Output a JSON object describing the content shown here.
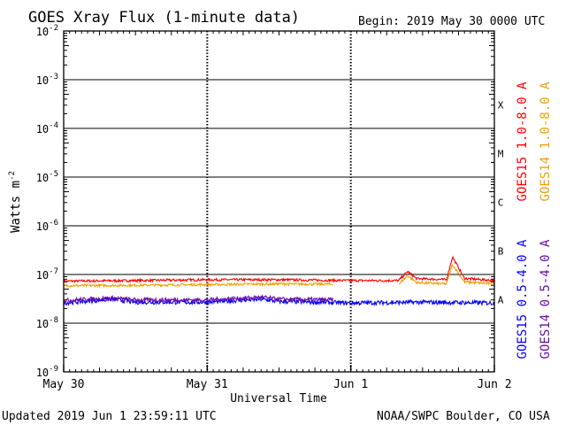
{
  "header": {
    "title": "GOES Xray Flux (1-minute data)",
    "begin": "Begin:  2019 May 30 0000 UTC"
  },
  "footer": {
    "updated": "Updated 2019 Jun  1 23:59:11 UTC",
    "source": "NOAA/SWPC Boulder, CO USA"
  },
  "chart_data": {
    "type": "line",
    "title": "GOES Xray Flux (1-minute data)",
    "xlabel": "Universal Time",
    "ylabel": "Watts m",
    "ylabel_sup": "-2",
    "y_scale": "log",
    "ylim": [
      1e-09,
      0.01
    ],
    "y_ticks": [
      {
        "base": "10",
        "exp": "-2"
      },
      {
        "base": "10",
        "exp": "-3"
      },
      {
        "base": "10",
        "exp": "-4"
      },
      {
        "base": "10",
        "exp": "-5"
      },
      {
        "base": "10",
        "exp": "-6"
      },
      {
        "base": "10",
        "exp": "-7"
      },
      {
        "base": "10",
        "exp": "-8"
      },
      {
        "base": "10",
        "exp": "-9"
      }
    ],
    "xlim": [
      "2019-05-30T00:00",
      "2019-06-02T00:00"
    ],
    "x_ticks": [
      "May 30",
      "May 31",
      "Jun 1",
      "Jun 2"
    ],
    "flare_classes": [
      {
        "label": "X",
        "threshold": 0.0001
      },
      {
        "label": "M",
        "threshold": 1e-05
      },
      {
        "label": "C",
        "threshold": 1e-06
      },
      {
        "label": "B",
        "threshold": 1e-07
      },
      {
        "label": "A",
        "threshold": 1e-08
      }
    ],
    "grid": true,
    "legend_position": "right",
    "series": [
      {
        "name": "GOES15 1.0-8.0 A",
        "color": "#ff0000",
        "x": [
          "2019-05-30T00:00",
          "2019-05-30T12:00",
          "2019-05-31T00:00",
          "2019-05-31T12:00",
          "2019-06-01T00:00",
          "2019-06-01T08:00",
          "2019-06-01T09:30",
          "2019-06-01T11:00",
          "2019-06-01T14:00",
          "2019-06-01T16:00",
          "2019-06-01T17:00",
          "2019-06-01T19:00",
          "2019-06-02T00:00"
        ],
        "values": [
          7.3e-08,
          7.5e-08,
          7.8e-08,
          7.8e-08,
          7.5e-08,
          7.5e-08,
          1.15e-07,
          8.2e-08,
          8e-08,
          7.8e-08,
          2.3e-07,
          8.3e-08,
          7.5e-08
        ]
      },
      {
        "name": "GOES14 1.0-8.0 A",
        "color": "#f0a000",
        "x": [
          "2019-05-30T00:00",
          "2019-05-30T12:00",
          "2019-05-31T00:00",
          "2019-05-31T12:00",
          "2019-05-31T21:00",
          "2019-06-01T00:00",
          "2019-06-01T08:00",
          "2019-06-01T09:30",
          "2019-06-01T11:00",
          "2019-06-01T16:00",
          "2019-06-01T17:00",
          "2019-06-01T19:00",
          "2019-06-02T00:00"
        ],
        "values": [
          5.9e-08,
          6e-08,
          6.2e-08,
          6.4e-08,
          6.3e-08,
          null,
          6.2e-08,
          9.5e-08,
          6.8e-08,
          6.4e-08,
          1.6e-07,
          7e-08,
          6.4e-08
        ]
      },
      {
        "name": "GOES15 0.5-4.0 A",
        "color": "#0000ff",
        "x": [
          "2019-05-30T00:00",
          "2019-05-30T08:00",
          "2019-05-30T12:00",
          "2019-05-31T00:00",
          "2019-05-31T09:00",
          "2019-05-31T12:00",
          "2019-06-01T00:00",
          "2019-06-01T12:00",
          "2019-06-02T00:00"
        ],
        "values": [
          2.6e-08,
          3.1e-08,
          2.7e-08,
          2.7e-08,
          3.1e-08,
          2.8e-08,
          2.6e-08,
          2.7e-08,
          2.6e-08
        ]
      },
      {
        "name": "GOES14 0.5-4.0 A",
        "color": "#6a0dad",
        "x": [
          "2019-05-30T00:00",
          "2019-05-30T08:00",
          "2019-05-30T12:00",
          "2019-05-31T00:00",
          "2019-05-31T09:00",
          "2019-05-31T12:00",
          "2019-05-31T21:00"
        ],
        "values": [
          2.9e-08,
          3.3e-08,
          3e-08,
          3e-08,
          3.4e-08,
          3.1e-08,
          3e-08
        ]
      }
    ]
  }
}
